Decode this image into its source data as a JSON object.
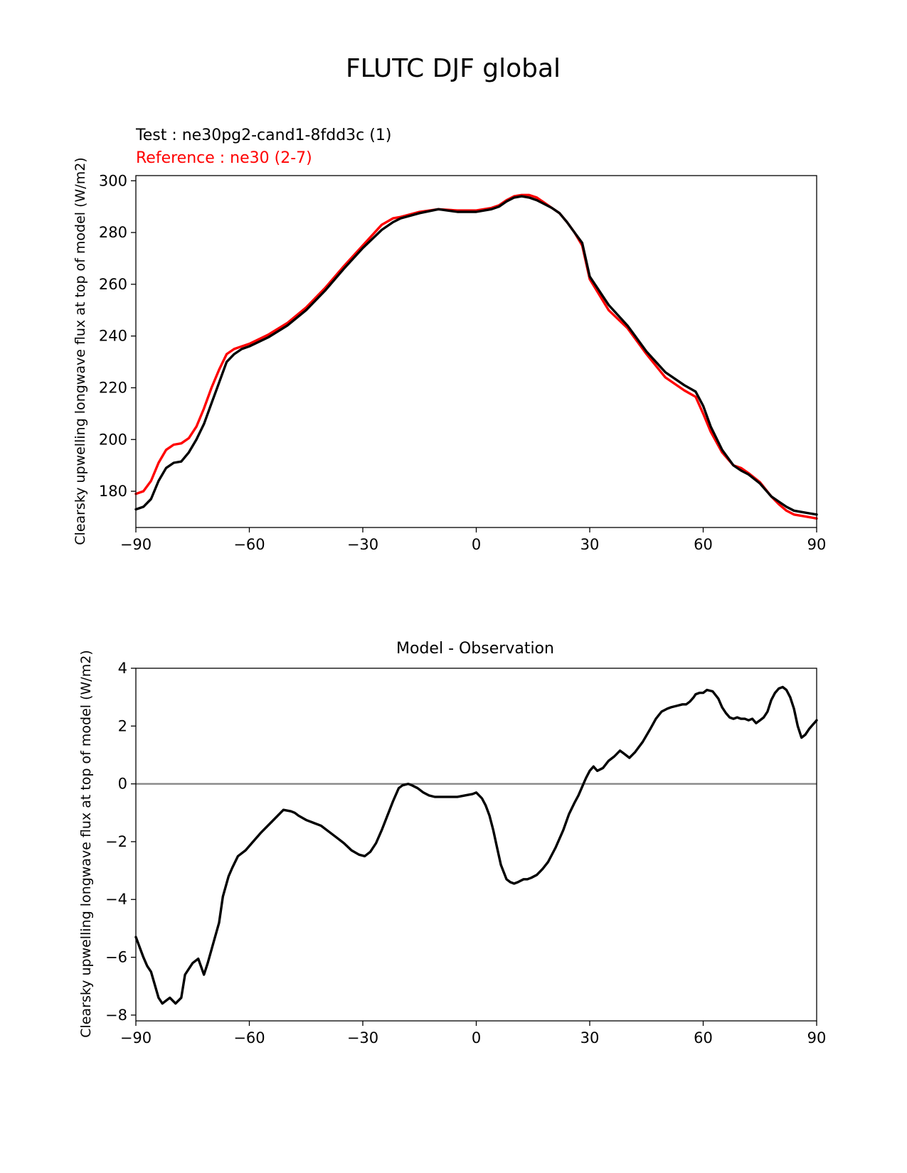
{
  "suptitle": "FLUTC DJF global",
  "colors": {
    "test": "#000000",
    "reference": "#ff0000",
    "zero_line": "#808080",
    "axes": "#000000"
  },
  "chart_data": [
    {
      "type": "line",
      "title": "",
      "legend_test": "Test : ne30pg2-cand1-8fdd3c (1)",
      "legend_reference": "Reference : ne30 (2-7)",
      "legend_location": "top-left above axes",
      "xlabel": "",
      "ylabel": "Clearsky upwelling longwave flux at top of model (W/m2)",
      "xlim": [
        -90,
        90
      ],
      "ylim": [
        166,
        302
      ],
      "xticks": [
        -90,
        -60,
        -30,
        0,
        30,
        60,
        90
      ],
      "xtick_labels": [
        "−90",
        "−60",
        "−30",
        "0",
        "30",
        "60",
        "90"
      ],
      "yticks": [
        180,
        200,
        220,
        240,
        260,
        280,
        300
      ],
      "ytick_labels": [
        "180",
        "200",
        "220",
        "240",
        "260",
        "280",
        "300"
      ],
      "series": [
        {
          "name": "Test : ne30pg2-cand1-8fdd3c (1)",
          "color": "#000000",
          "x": [
            -90,
            -88,
            -86,
            -84,
            -82,
            -80,
            -78,
            -76,
            -74,
            -72,
            -70,
            -68,
            -66,
            -64,
            -62,
            -60,
            -55,
            -50,
            -45,
            -40,
            -35,
            -30,
            -25,
            -22,
            -20,
            -15,
            -10,
            -5,
            0,
            4,
            6,
            8,
            10,
            12,
            14,
            16,
            18,
            20,
            22,
            24,
            26,
            28,
            30,
            35,
            40,
            45,
            50,
            55,
            58,
            60,
            62,
            65,
            68,
            70,
            72,
            75,
            78,
            80,
            82,
            84,
            86,
            88,
            90
          ],
          "y": [
            173,
            174,
            177,
            184,
            189,
            191,
            191.5,
            195,
            200,
            206,
            214,
            222,
            230,
            233,
            235,
            236,
            239.5,
            244,
            250,
            257.5,
            266,
            274,
            281,
            284,
            285.5,
            287.5,
            289,
            288,
            288,
            289,
            290,
            292,
            293.5,
            294,
            293.5,
            292.5,
            291,
            289.5,
            287.5,
            284,
            280,
            276,
            263,
            252,
            244,
            234,
            226,
            221,
            218.5,
            213,
            205,
            196,
            190,
            188,
            186.5,
            183,
            178,
            176,
            174,
            172.5,
            172,
            171.5,
            171
          ]
        },
        {
          "name": "Reference : ne30 (2-7)",
          "color": "#ff0000",
          "x": [
            -90,
            -88,
            -86,
            -84,
            -82,
            -80,
            -78,
            -76,
            -74,
            -72,
            -70,
            -68,
            -66,
            -64,
            -62,
            -60,
            -55,
            -50,
            -45,
            -40,
            -35,
            -30,
            -25,
            -22,
            -20,
            -15,
            -10,
            -5,
            0,
            4,
            6,
            8,
            10,
            12,
            14,
            16,
            18,
            20,
            22,
            24,
            26,
            28,
            30,
            35,
            40,
            45,
            50,
            55,
            58,
            60,
            62,
            65,
            68,
            70,
            72,
            75,
            78,
            80,
            82,
            84,
            86,
            88,
            90
          ],
          "y": [
            179,
            180,
            184,
            191,
            196,
            198,
            198.5,
            200.5,
            205,
            212,
            220,
            227,
            233,
            235,
            236,
            237,
            240.5,
            245,
            251,
            258.5,
            267,
            275,
            283,
            285.5,
            286,
            288,
            289,
            288.5,
            288.5,
            289.5,
            290.5,
            292.5,
            294,
            294.5,
            294.5,
            293.5,
            291.5,
            289.5,
            287.5,
            284,
            280,
            275,
            262,
            250,
            243,
            233,
            224,
            219,
            216.5,
            210,
            203,
            195,
            190,
            189,
            187,
            183.5,
            178,
            175,
            172.5,
            171,
            170.5,
            170,
            169.5
          ]
        }
      ]
    },
    {
      "type": "line",
      "title": "Model - Observation",
      "xlabel": "",
      "ylabel": "Clearsky upwelling longwave flux at top of model (W/m2)",
      "xlim": [
        -90,
        90
      ],
      "ylim": [
        -8.2,
        4
      ],
      "xticks": [
        -90,
        -60,
        -30,
        0,
        30,
        60,
        90
      ],
      "xtick_labels": [
        "−90",
        "−60",
        "−30",
        "0",
        "30",
        "60",
        "90"
      ],
      "yticks": [
        -8,
        -6,
        -4,
        -2,
        0,
        2,
        4
      ],
      "ytick_labels": [
        "−8",
        "−6",
        "−4",
        "−2",
        "0",
        "2",
        "4"
      ],
      "zero_line": 0,
      "series": [
        {
          "name": "Model - Observation",
          "color": "#000000",
          "x": [
            -90,
            -88,
            -87,
            -86,
            -84,
            -83,
            -82,
            -81,
            -79.5,
            -78,
            -77,
            -75,
            -73.5,
            -72,
            -71,
            -69.5,
            -68,
            -67,
            -65.5,
            -64.5,
            -63,
            -61,
            -59,
            -57,
            -54,
            -51,
            -49,
            -48,
            -47,
            -45,
            -43,
            -41,
            -39,
            -37,
            -35,
            -33,
            -31,
            -29.5,
            -28,
            -26.5,
            -25,
            -23.5,
            -22,
            -20.5,
            -19.5,
            -18,
            -17,
            -15.5,
            -14,
            -12.5,
            -11,
            -9,
            -7,
            -5,
            -3,
            -1,
            0,
            1.5,
            2.5,
            3.5,
            4.5,
            5.5,
            6.5,
            8,
            9,
            10,
            11,
            12.5,
            13.5,
            14.5,
            16,
            17.5,
            19,
            21,
            23,
            24.5,
            26,
            27,
            28,
            29,
            30,
            31,
            32,
            33.5,
            35,
            36.5,
            38,
            39,
            40.5,
            42,
            44,
            46,
            47.5,
            49,
            50.5,
            51.5,
            53,
            54.5,
            55.5,
            56.5,
            57.5,
            58,
            59,
            60,
            61,
            62.5,
            64,
            65,
            66,
            67,
            68,
            69,
            70,
            71,
            72,
            73,
            74,
            75,
            76,
            77,
            78,
            79,
            80,
            81,
            82,
            83,
            84,
            85,
            86,
            87,
            88,
            89,
            90
          ],
          "y": [
            -5.3,
            -6,
            -6.3,
            -6.5,
            -7.4,
            -7.6,
            -7.5,
            -7.4,
            -7.6,
            -7.4,
            -6.6,
            -6.2,
            -6.05,
            -6.6,
            -6.2,
            -5.5,
            -4.8,
            -3.9,
            -3.2,
            -2.9,
            -2.5,
            -2.3,
            -2,
            -1.7,
            -1.3,
            -0.9,
            -0.95,
            -1,
            -1.1,
            -1.25,
            -1.35,
            -1.45,
            -1.65,
            -1.85,
            -2.05,
            -2.3,
            -2.45,
            -2.5,
            -2.35,
            -2.05,
            -1.6,
            -1.1,
            -0.6,
            -0.15,
            -0.05,
            0,
            -0.05,
            -0.15,
            -0.3,
            -0.4,
            -0.45,
            -0.45,
            -0.45,
            -0.45,
            -0.4,
            -0.35,
            -0.3,
            -0.5,
            -0.75,
            -1.1,
            -1.6,
            -2.2,
            -2.8,
            -3.3,
            -3.4,
            -3.45,
            -3.4,
            -3.3,
            -3.3,
            -3.25,
            -3.15,
            -2.95,
            -2.7,
            -2.2,
            -1.6,
            -1.05,
            -0.65,
            -0.4,
            -0.1,
            0.2,
            0.45,
            0.6,
            0.45,
            0.55,
            0.8,
            0.95,
            1.15,
            1.05,
            0.9,
            1.1,
            1.45,
            1.9,
            2.25,
            2.5,
            2.6,
            2.65,
            2.7,
            2.75,
            2.75,
            2.85,
            3,
            3.1,
            3.15,
            3.15,
            3.25,
            3.2,
            2.95,
            2.65,
            2.45,
            2.3,
            2.25,
            2.3,
            2.25,
            2.25,
            2.2,
            2.25,
            2.1,
            2.2,
            2.3,
            2.5,
            2.9,
            3.15,
            3.3,
            3.35,
            3.25,
            3,
            2.6,
            2,
            1.6,
            1.7,
            1.9,
            2.05,
            2.2
          ]
        }
      ]
    }
  ]
}
